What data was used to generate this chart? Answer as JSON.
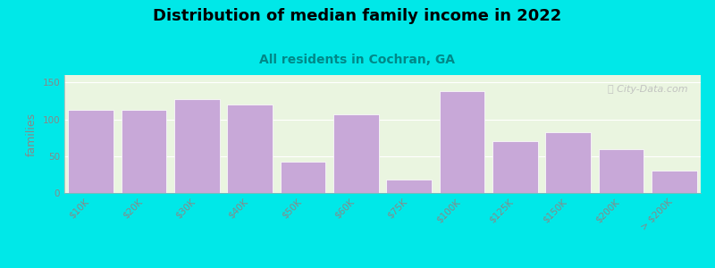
{
  "title": "Distribution of median family income in 2022",
  "subtitle": "All residents in Cochran, GA",
  "ylabel": "families",
  "categories": [
    "$10K",
    "$20K",
    "$30K",
    "$40K",
    "$50K",
    "$60K",
    "$75K",
    "$100K",
    "$125K",
    "$150K",
    "$200K",
    "> $200K"
  ],
  "values": [
    113,
    113,
    127,
    120,
    43,
    107,
    18,
    138,
    70,
    82,
    60,
    30
  ],
  "bar_color": "#c8a8d8",
  "bar_edge_color": "#c8a8d8",
  "background_outer": "#00e8e8",
  "plot_bg_left": "#eaf5e0",
  "plot_bg_right": "#f8fdf5",
  "title_fontsize": 13,
  "subtitle_fontsize": 10,
  "subtitle_color": "#008888",
  "ylabel_fontsize": 9,
  "tick_fontsize": 7.5,
  "ylim": [
    0,
    160
  ],
  "yticks": [
    0,
    50,
    100,
    150
  ],
  "watermark_text": "ⓘ City-Data.com",
  "watermark_color": "#bbbbbb",
  "spine_color": "#aaaaaa",
  "tick_color": "#888888"
}
